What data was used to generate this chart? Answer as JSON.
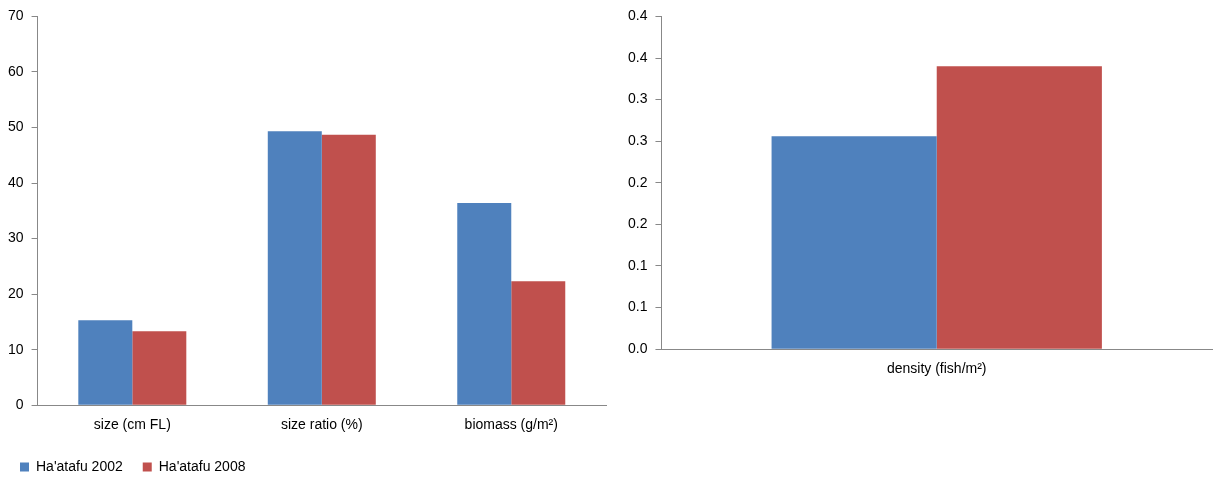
{
  "chart_data": [
    {
      "type": "bar",
      "categories": [
        "size (cm FL)",
        "size ratio (%)",
        "biomass (g/m²)"
      ],
      "series": [
        {
          "name": "Ha'atafu 2002",
          "color": "#4f81bd",
          "values": [
            15.3,
            49.3,
            36.4
          ]
        },
        {
          "name": "Ha'atafu 2008",
          "color": "#c0504d",
          "values": [
            13.3,
            48.7,
            22.3
          ]
        }
      ],
      "ylim": [
        0,
        70
      ],
      "yticks": [
        0,
        10,
        20,
        30,
        40,
        50,
        60,
        70
      ],
      "grid": false,
      "legend": "bottom left"
    },
    {
      "type": "bar",
      "categories": [
        "density (fish/m²)"
      ],
      "series": [
        {
          "color": "#4f81bd",
          "values": [
            0.256
          ]
        },
        {
          "color": "#c0504d",
          "values": [
            0.34
          ]
        }
      ],
      "ylim": [
        0,
        0.4
      ],
      "yticks": [
        {
          "value": 0,
          "label": "0.0"
        },
        {
          "value": 0.05,
          "label": "0.1"
        },
        {
          "value": 0.1,
          "label": "0.1"
        },
        {
          "value": 0.15,
          "label": "0.2"
        },
        {
          "value": 0.2,
          "label": "0.2"
        },
        {
          "value": 0.25,
          "label": "0.3"
        },
        {
          "value": 0.3,
          "label": "0.3"
        },
        {
          "value": 0.35,
          "label": "0.4"
        },
        {
          "value": 0.4,
          "label": "0.4"
        }
      ],
      "grid": false
    }
  ]
}
